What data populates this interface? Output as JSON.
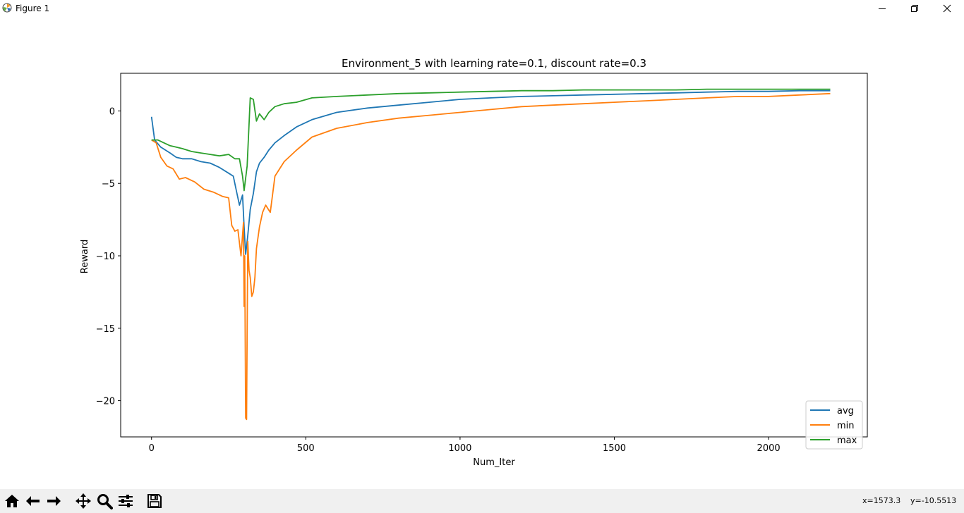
{
  "window": {
    "title": "Figure 1",
    "icon": "matplotlib-logo-icon",
    "controls": [
      "minimize-icon",
      "restore-icon",
      "close-icon"
    ]
  },
  "toolbar": {
    "buttons": [
      "home-icon",
      "back-arrow-icon",
      "forward-arrow-icon",
      "pan-icon",
      "zoom-icon",
      "configure-subplots-icon",
      "save-icon"
    ],
    "x_readout": "x=1573.3",
    "y_readout": "y=-10.5513"
  },
  "chart_data": {
    "type": "line",
    "title": "Environment_5 with learning rate=0.1, discount rate=0.3",
    "xlabel": "Num_Iter",
    "ylabel": "Reward",
    "xlim": [
      -100,
      2320
    ],
    "ylim": [
      -22.5,
      2.6
    ],
    "xticks": [
      0,
      500,
      1000,
      1500,
      2000
    ],
    "xtick_labels": [
      "0",
      "500",
      "1000",
      "1500",
      "2000"
    ],
    "yticks": [
      -20,
      -15,
      -10,
      -5,
      0
    ],
    "ytick_labels": [
      "−20",
      "−15",
      "−10",
      "−5",
      "0"
    ],
    "grid": false,
    "legend": {
      "position": "lower-right",
      "entries": [
        "avg",
        "min",
        "max"
      ]
    },
    "series": [
      {
        "name": "avg",
        "color": "#1f77b4",
        "x": [
          0,
          10,
          30,
          60,
          80,
          100,
          130,
          160,
          190,
          220,
          250,
          265,
          275,
          285,
          295,
          300,
          305,
          312,
          320,
          330,
          340,
          350,
          365,
          380,
          400,
          430,
          470,
          520,
          600,
          700,
          800,
          900,
          1000,
          1100,
          1200,
          1300,
          1400,
          1500,
          1600,
          1700,
          1800,
          1900,
          2000,
          2100,
          2200
        ],
        "y": [
          -0.4,
          -2.0,
          -2.5,
          -2.9,
          -3.2,
          -3.3,
          -3.3,
          -3.5,
          -3.6,
          -3.9,
          -4.3,
          -4.5,
          -5.5,
          -6.5,
          -5.8,
          -8.0,
          -9.9,
          -8.6,
          -6.8,
          -5.7,
          -4.2,
          -3.6,
          -3.2,
          -2.7,
          -2.2,
          -1.7,
          -1.1,
          -0.6,
          -0.1,
          0.2,
          0.4,
          0.6,
          0.8,
          0.9,
          1.0,
          1.05,
          1.1,
          1.15,
          1.2,
          1.25,
          1.3,
          1.35,
          1.35,
          1.4,
          1.4
        ]
      },
      {
        "name": "min",
        "color": "#ff7f0e",
        "x": [
          0,
          15,
          30,
          50,
          70,
          90,
          110,
          140,
          170,
          200,
          230,
          250,
          260,
          270,
          280,
          290,
          298,
          300,
          302,
          305,
          308,
          312,
          316,
          320,
          325,
          330,
          335,
          340,
          350,
          360,
          370,
          385,
          400,
          430,
          470,
          520,
          600,
          700,
          800,
          900,
          1000,
          1100,
          1200,
          1300,
          1400,
          1500,
          1600,
          1700,
          1800,
          1900,
          2000,
          2100,
          2200
        ],
        "y": [
          -2.0,
          -2.2,
          -3.2,
          -3.8,
          -4.0,
          -4.7,
          -4.6,
          -4.9,
          -5.4,
          -5.6,
          -5.9,
          -6.0,
          -7.9,
          -8.3,
          -8.2,
          -10.0,
          -7.7,
          -13.5,
          -10.0,
          -21.2,
          -21.3,
          -9.0,
          -11.0,
          -11.5,
          -12.8,
          -12.5,
          -11.5,
          -9.5,
          -8.0,
          -7.0,
          -6.5,
          -7.0,
          -4.5,
          -3.5,
          -2.7,
          -1.8,
          -1.2,
          -0.8,
          -0.5,
          -0.3,
          -0.1,
          0.1,
          0.3,
          0.4,
          0.5,
          0.6,
          0.7,
          0.8,
          0.9,
          1.0,
          1.0,
          1.1,
          1.2
        ]
      },
      {
        "name": "max",
        "color": "#2ca02c",
        "x": [
          0,
          20,
          40,
          60,
          80,
          100,
          130,
          160,
          190,
          220,
          250,
          270,
          285,
          295,
          300,
          310,
          320,
          330,
          340,
          350,
          365,
          380,
          400,
          430,
          470,
          520,
          600,
          700,
          800,
          900,
          1000,
          1100,
          1200,
          1300,
          1400,
          1500,
          1600,
          1700,
          1800,
          1900,
          2000,
          2100,
          2200
        ],
        "y": [
          -2.0,
          -2.0,
          -2.2,
          -2.4,
          -2.5,
          -2.6,
          -2.8,
          -2.9,
          -3.0,
          -3.1,
          -3.0,
          -3.3,
          -3.3,
          -4.5,
          -5.5,
          -3.8,
          0.9,
          0.8,
          -0.7,
          -0.2,
          -0.6,
          -0.1,
          0.3,
          0.5,
          0.6,
          0.9,
          1.0,
          1.1,
          1.2,
          1.25,
          1.3,
          1.35,
          1.4,
          1.4,
          1.45,
          1.45,
          1.45,
          1.45,
          1.5,
          1.5,
          1.5,
          1.5,
          1.5
        ]
      }
    ]
  }
}
